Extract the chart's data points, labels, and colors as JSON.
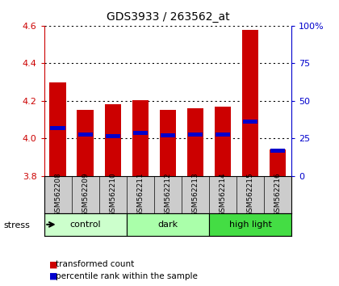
{
  "title": "GDS3933 / 263562_at",
  "samples": [
    "GSM562208",
    "GSM562209",
    "GSM562210",
    "GSM562211",
    "GSM562212",
    "GSM562213",
    "GSM562214",
    "GSM562215",
    "GSM562216"
  ],
  "bar_values": [
    4.3,
    4.15,
    4.18,
    4.205,
    4.15,
    4.16,
    4.17,
    4.58,
    3.94
  ],
  "percentile_values": [
    4.055,
    4.02,
    4.01,
    4.03,
    4.015,
    4.02,
    4.02,
    4.09,
    3.935
  ],
  "bar_bottom": 3.8,
  "ylim": [
    3.8,
    4.6
  ],
  "yticks": [
    3.8,
    4.0,
    4.2,
    4.4,
    4.6
  ],
  "right_yticks_vals": [
    0,
    25,
    50,
    75,
    100
  ],
  "right_ylim": [
    0,
    100
  ],
  "bar_color": "#cc0000",
  "percentile_color": "#0000cc",
  "bar_width": 0.6,
  "groups": [
    {
      "label": "control",
      "indices": [
        0,
        1,
        2
      ],
      "color": "#ccffcc"
    },
    {
      "label": "dark",
      "indices": [
        3,
        4,
        5
      ],
      "color": "#aaffaa"
    },
    {
      "label": "high light",
      "indices": [
        6,
        7,
        8
      ],
      "color": "#44dd44"
    }
  ],
  "stress_label": "stress",
  "legend_red": "transformed count",
  "legend_blue": "percentile rank within the sample",
  "label_area_color": "#cccccc",
  "tick_color_left": "#cc0000",
  "tick_color_right": "#0000cc"
}
